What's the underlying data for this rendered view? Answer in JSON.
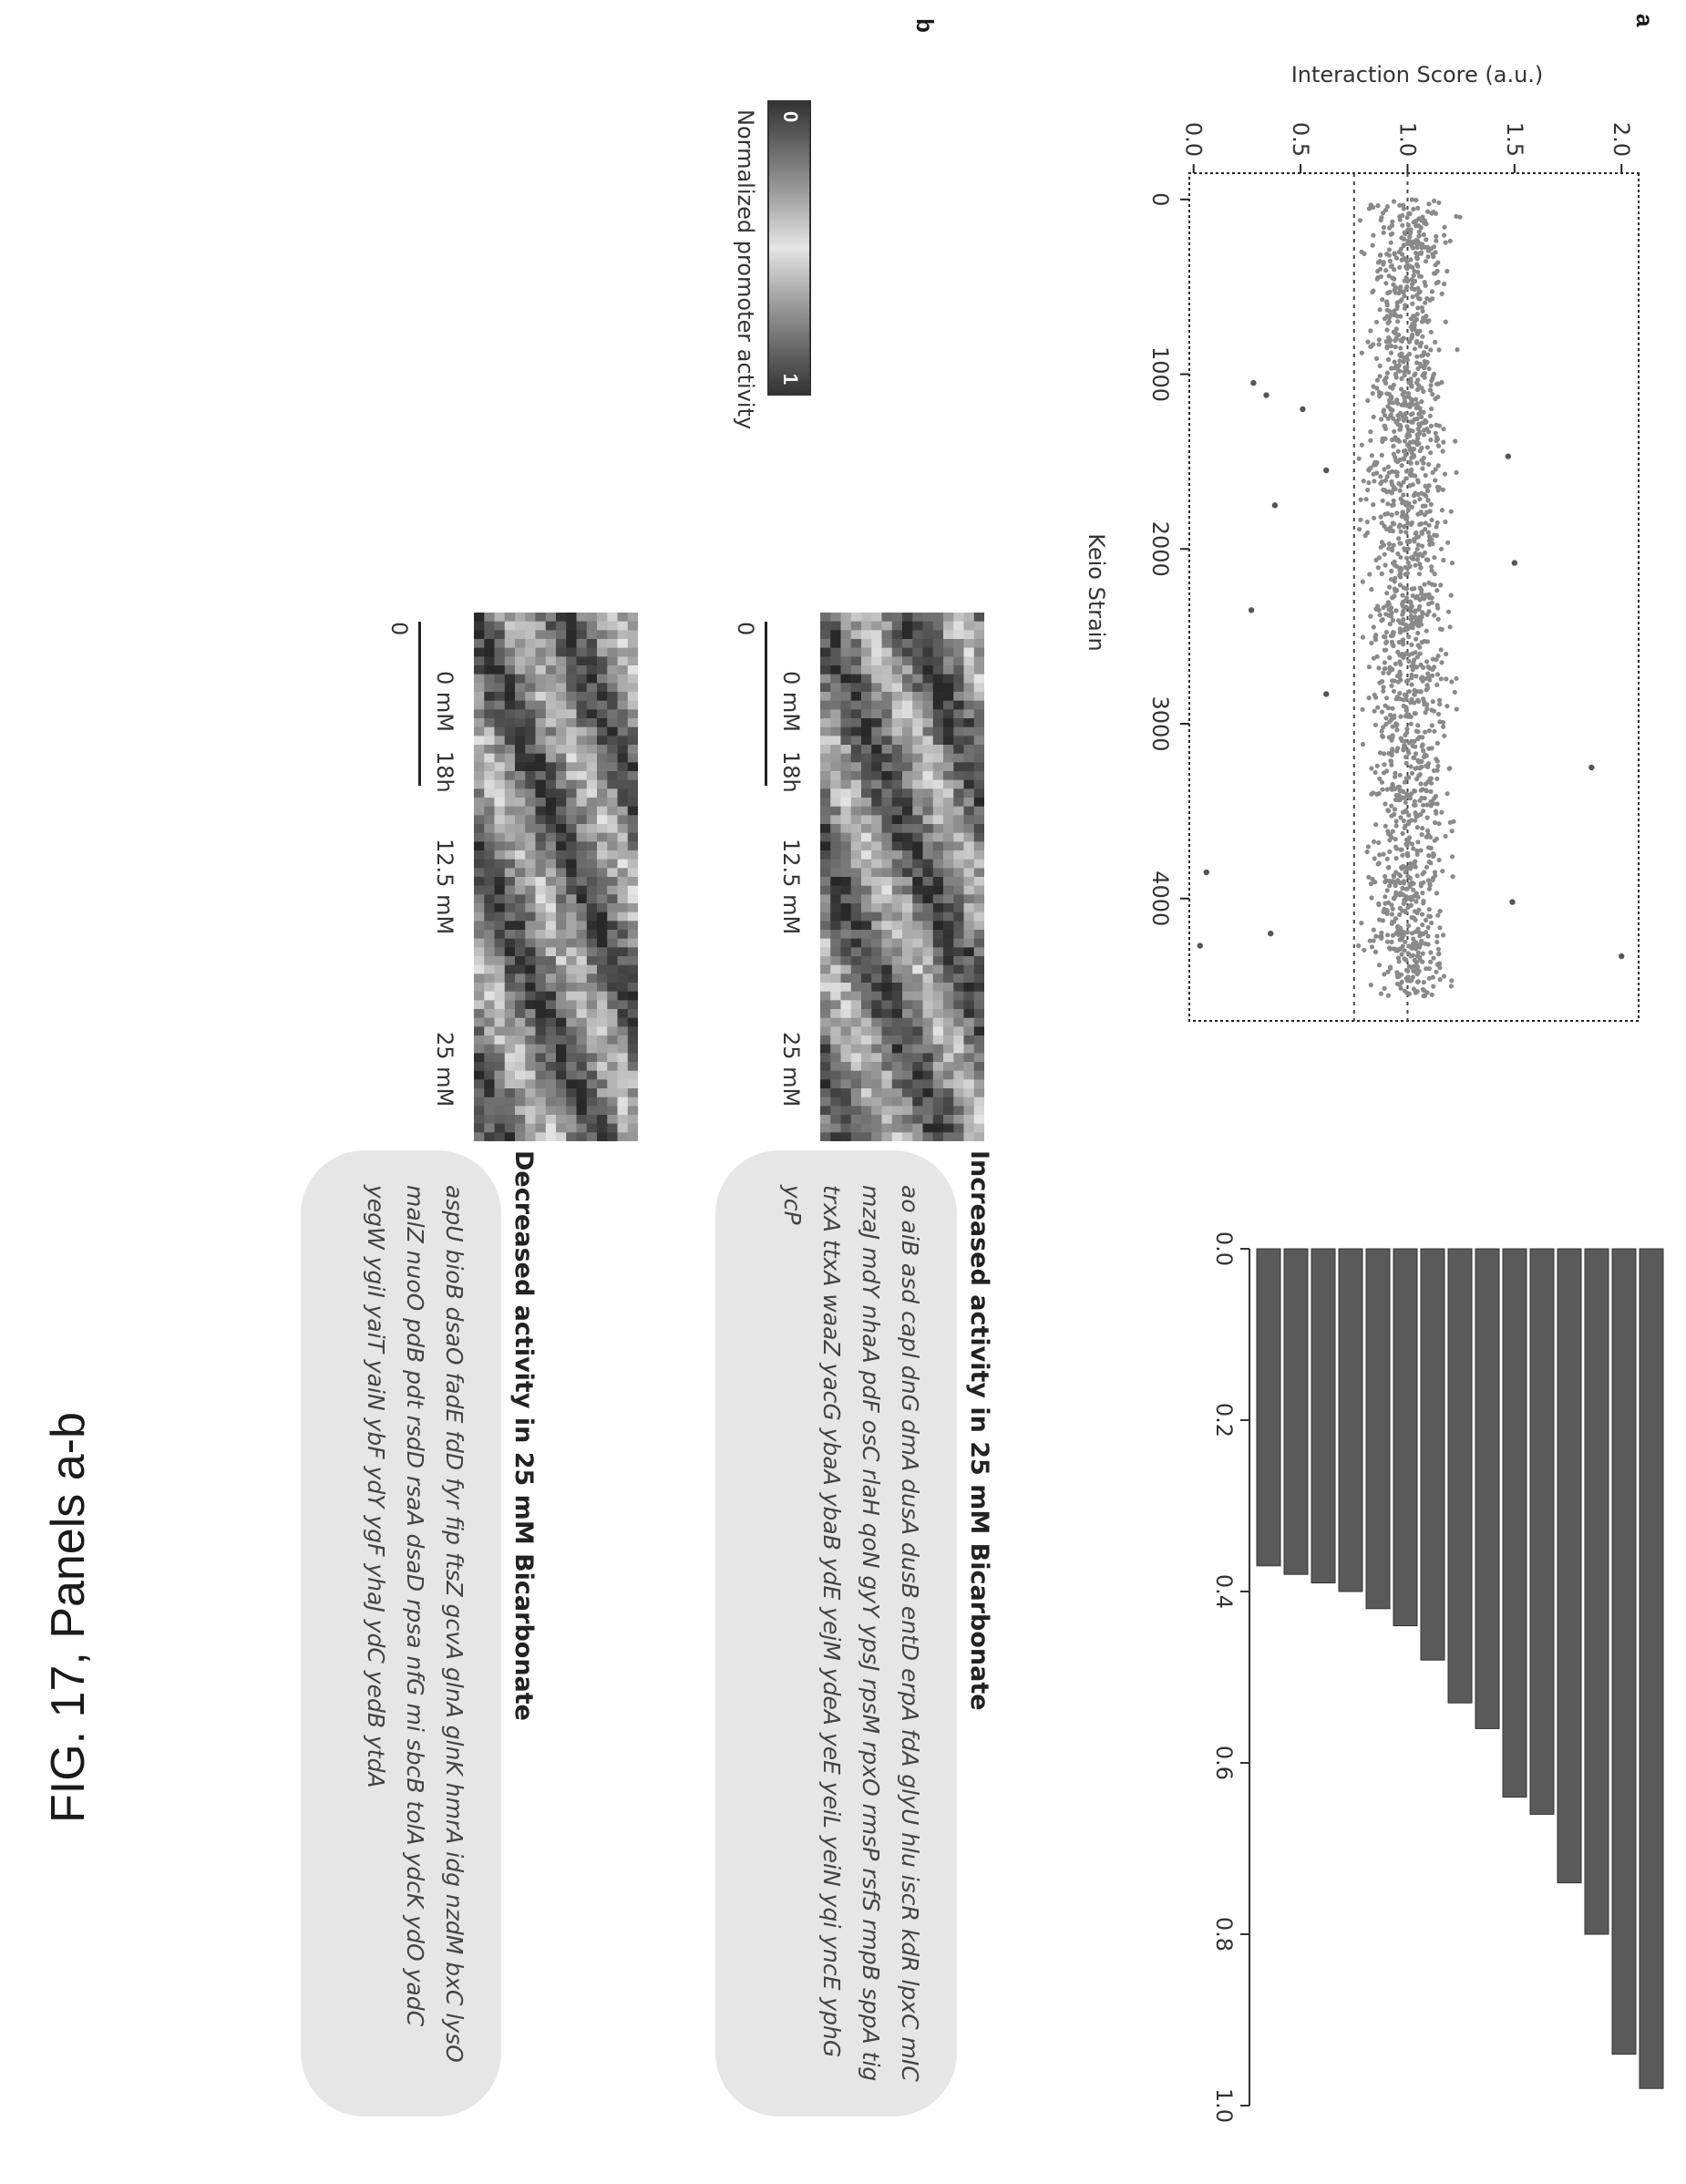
{
  "figure_label": "FIG. 17, Panels a-b",
  "panel_a": {
    "letter": "a",
    "scatter": {
      "ylabel": "Interaction Score (a.u.)",
      "xlabel": "Keio Strain",
      "xticks": [
        "0",
        "1000",
        "2000",
        "3000",
        "4000"
      ],
      "yticks": [
        "0.0",
        "0.5",
        "1.0",
        "1.5",
        "2.0"
      ]
    },
    "bars": {
      "xticks": [
        "0.0",
        "0.2",
        "0.4",
        "0.6",
        "0.8",
        "1.0"
      ]
    }
  },
  "panel_b": {
    "letter": "b",
    "colorbar_label": "Normalized promoter activity",
    "colorbar_min": "0",
    "colorbar_max": "1",
    "heatmap_labels": [
      "0 mM",
      "12.5 mM",
      "25 mM"
    ],
    "time_start": "0",
    "time_end": "18h",
    "increased": {
      "title": "Increased activity in 25 mM Bicarbonate",
      "genes": "ao aiB asd capl dnG dmA dusA dusB entD erpA fdA glyU hlu iscR kdR lpxC mIC mzaJ mdY nhaA pdF osC rlaH qoN gyY ypsJ rpsM rpxO rmsP rsfS rmpB sppA tig trxA ttxA waaZ yacG ybaA ybaB ydE yejM ydeA yeE yeiL yeiN yqi yncE yphG ycP"
    },
    "decreased": {
      "title": "Decreased activity in 25 mM Bicarbonate",
      "genes": "aspU bioB dsaO fadE fdD fyr fip ftsZ gcvA glnA glnK hmrA idg nzdM bxC lysO malZ nuoO pdB pdt rsdD rsaA dsaD rpsa nfG mi sbcB tolA ydcK ydO yadC yegW ygiI yaiT yaiN ybF ydY ygF yhaJ ydC yedB ytdA"
    }
  },
  "chart_data": [
    {
      "type": "scatter",
      "xlabel": "Keio Strain",
      "ylabel": "Interaction Score (a.u.)",
      "xlim": [
        -150,
        4700
      ],
      "ylim": [
        -0.02,
        2.08
      ],
      "grid": false,
      "reference_lines": [
        1.0,
        0.75
      ],
      "band": {
        "x_start": 0,
        "x_end": 4560,
        "center": 1.0,
        "spread": 0.12
      },
      "outliers": [
        {
          "x": 4330,
          "y": 2.0
        },
        {
          "x": 3250,
          "y": 1.86
        },
        {
          "x": 4270,
          "y": 0.03
        },
        {
          "x": 3850,
          "y": 0.06
        },
        {
          "x": 1750,
          "y": 0.38
        },
        {
          "x": 2350,
          "y": 0.27
        },
        {
          "x": 1050,
          "y": 0.28
        },
        {
          "x": 1120,
          "y": 0.34
        },
        {
          "x": 4200,
          "y": 0.36
        },
        {
          "x": 1550,
          "y": 0.62
        },
        {
          "x": 2830,
          "y": 0.62
        },
        {
          "x": 1200,
          "y": 0.51
        },
        {
          "x": 1470,
          "y": 1.47
        },
        {
          "x": 2080,
          "y": 1.5
        },
        {
          "x": 4020,
          "y": 1.49
        }
      ]
    },
    {
      "type": "bar",
      "orientation": "horizontal",
      "xlim": [
        0.0,
        1.0
      ],
      "values": [
        0.98,
        0.94,
        0.8,
        0.74,
        0.66,
        0.64,
        0.56,
        0.53,
        0.48,
        0.44,
        0.42,
        0.4,
        0.39,
        0.38,
        0.37
      ]
    }
  ]
}
